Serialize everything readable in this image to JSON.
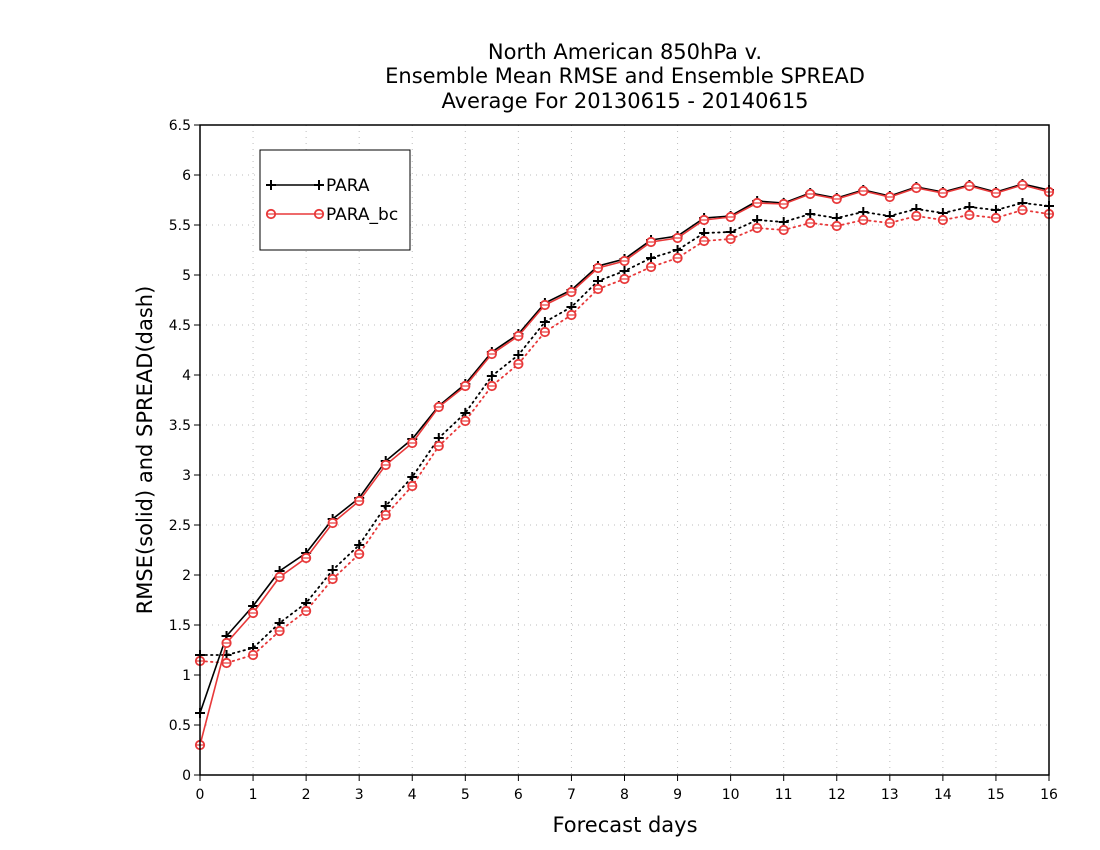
{
  "chart_data": {
    "type": "line",
    "title_lines": [
      "North American 850hPa v.",
      "Ensemble Mean RMSE and Ensemble SPREAD",
      "Average For 20130615 - 20140615"
    ],
    "xlabel": "Forecast days",
    "ylabel": "RMSE(solid) and SPREAD(dash)",
    "xlim": [
      0,
      16
    ],
    "ylim": [
      0,
      6.5
    ],
    "x_ticks": [
      0,
      1,
      2,
      3,
      4,
      5,
      6,
      7,
      8,
      9,
      10,
      11,
      12,
      13,
      14,
      15,
      16
    ],
    "y_ticks": [
      0,
      0.5,
      1,
      1.5,
      2,
      2.5,
      3,
      3.5,
      4,
      4.5,
      5,
      5.5,
      6,
      6.5
    ],
    "x_tick_labels": [
      "0",
      "1",
      "2",
      "3",
      "4",
      "5",
      "6",
      "7",
      "8",
      "9",
      "10",
      "11",
      "12",
      "13",
      "14",
      "15",
      "16"
    ],
    "y_tick_labels": [
      "0",
      "0.5",
      "1",
      "1.5",
      "2",
      "2.5",
      "3",
      "3.5",
      "4",
      "4.5",
      "5",
      "5.5",
      "6",
      "6.5"
    ],
    "grid": true,
    "legend_position": "top-left",
    "x": [
      0,
      0.5,
      1,
      1.5,
      2,
      2.5,
      3,
      3.5,
      4,
      4.5,
      5,
      5.5,
      6,
      6.5,
      7,
      7.5,
      8,
      8.5,
      9,
      9.5,
      10,
      10.5,
      11,
      11.5,
      12,
      12.5,
      13,
      13.5,
      14,
      14.5,
      15,
      15.5,
      16
    ],
    "series": [
      {
        "name": "PARA",
        "metric": "RMSE",
        "style": "solid",
        "marker": "plus",
        "color": "#000000",
        "values": [
          0.62,
          1.39,
          1.69,
          2.04,
          2.22,
          2.56,
          2.77,
          3.14,
          3.36,
          3.69,
          3.91,
          4.23,
          4.41,
          4.72,
          4.85,
          5.09,
          5.16,
          5.35,
          5.39,
          5.57,
          5.59,
          5.74,
          5.72,
          5.82,
          5.77,
          5.85,
          5.79,
          5.88,
          5.83,
          5.9,
          5.83,
          5.91,
          5.85
        ]
      },
      {
        "name": "PARA_bc",
        "metric": "RMSE",
        "style": "solid",
        "marker": "circle",
        "color": "#e8393a",
        "values": [
          0.3,
          1.32,
          1.62,
          1.98,
          2.17,
          2.52,
          2.74,
          3.1,
          3.32,
          3.68,
          3.89,
          4.21,
          4.39,
          4.7,
          4.83,
          5.07,
          5.14,
          5.33,
          5.37,
          5.55,
          5.58,
          5.72,
          5.71,
          5.81,
          5.76,
          5.84,
          5.78,
          5.87,
          5.82,
          5.89,
          5.82,
          5.9,
          5.83
        ]
      },
      {
        "name": "PARA",
        "metric": "SPREAD",
        "style": "dotted",
        "marker": "plus",
        "color": "#000000",
        "values": [
          1.2,
          1.2,
          1.27,
          1.52,
          1.72,
          2.05,
          2.3,
          2.69,
          2.98,
          3.37,
          3.62,
          3.99,
          4.2,
          4.53,
          4.68,
          4.94,
          5.04,
          5.17,
          5.25,
          5.42,
          5.43,
          5.55,
          5.53,
          5.61,
          5.57,
          5.63,
          5.59,
          5.66,
          5.62,
          5.68,
          5.65,
          5.72,
          5.69
        ]
      },
      {
        "name": "PARA_bc",
        "metric": "SPREAD",
        "style": "dotted",
        "marker": "circle",
        "color": "#e8393a",
        "values": [
          1.14,
          1.12,
          1.2,
          1.44,
          1.64,
          1.96,
          2.21,
          2.6,
          2.89,
          3.29,
          3.54,
          3.89,
          4.11,
          4.43,
          4.6,
          4.86,
          4.96,
          5.08,
          5.17,
          5.34,
          5.36,
          5.47,
          5.45,
          5.52,
          5.49,
          5.55,
          5.52,
          5.59,
          5.55,
          5.6,
          5.57,
          5.65,
          5.61
        ]
      }
    ],
    "legend": [
      {
        "label": "PARA",
        "color": "#000000",
        "marker": "plus"
      },
      {
        "label": "PARA_bc",
        "color": "#e8393a",
        "marker": "circle"
      }
    ]
  }
}
